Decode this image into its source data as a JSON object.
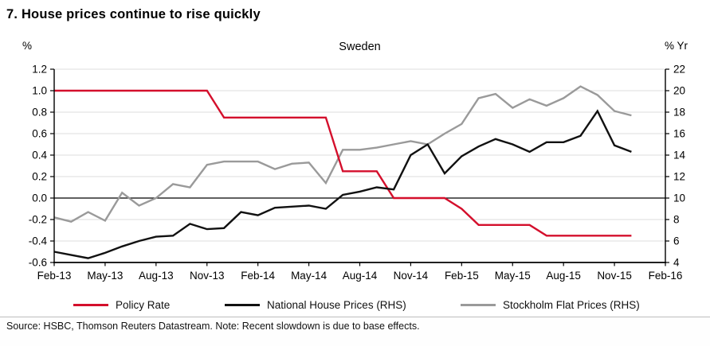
{
  "chart_data": {
    "type": "line",
    "title": "7. House prices continue to rise quickly",
    "region_label": "Sweden",
    "grid": true,
    "legend_position": "bottom",
    "left_axis": {
      "unit_label": "%",
      "min": -0.6,
      "max": 1.2,
      "tick_labels": [
        "1.2",
        "1.0",
        "0.8",
        "0.6",
        "0.4",
        "0.2",
        "0.0",
        "-0.2",
        "-0.4",
        "-0.6"
      ]
    },
    "right_axis": {
      "unit_label": "% Yr",
      "min": 4,
      "max": 22,
      "tick_labels": [
        "22",
        "20",
        "18",
        "16",
        "14",
        "12",
        "10",
        "8",
        "6",
        "4"
      ]
    },
    "x": {
      "span_months": 36,
      "tick_labels": [
        "Feb-13",
        "May-13",
        "Aug-13",
        "Nov-13",
        "Feb-14",
        "May-14",
        "Aug-14",
        "Nov-14",
        "Feb-15",
        "May-15",
        "Aug-15",
        "Nov-15",
        "Feb-16"
      ],
      "months": [
        "Feb-13",
        "Mar-13",
        "Apr-13",
        "May-13",
        "Jun-13",
        "Jul-13",
        "Aug-13",
        "Sep-13",
        "Oct-13",
        "Nov-13",
        "Dec-13",
        "Jan-14",
        "Feb-14",
        "Mar-14",
        "Apr-14",
        "May-14",
        "Jun-14",
        "Jul-14",
        "Aug-14",
        "Sep-14",
        "Oct-14",
        "Nov-14",
        "Dec-14",
        "Jan-15",
        "Feb-15",
        "Mar-15",
        "Apr-15",
        "May-15",
        "Jun-15",
        "Jul-15",
        "Aug-15",
        "Sep-15",
        "Oct-15",
        "Nov-15",
        "Dec-15"
      ]
    },
    "series": [
      {
        "name": "Policy Rate",
        "axis": "left",
        "color": "#d40f2c",
        "values": [
          1.0,
          1.0,
          1.0,
          1.0,
          1.0,
          1.0,
          1.0,
          1.0,
          1.0,
          1.0,
          0.75,
          0.75,
          0.75,
          0.75,
          0.75,
          0.75,
          0.75,
          0.25,
          0.25,
          0.25,
          0.0,
          0.0,
          0.0,
          0.0,
          -0.1,
          -0.25,
          -0.25,
          -0.25,
          -0.25,
          -0.35,
          -0.35,
          -0.35,
          -0.35,
          -0.35,
          -0.35
        ]
      },
      {
        "name": "National House Prices (RHS)",
        "axis": "right",
        "color": "#111111",
        "values": [
          5.0,
          4.7,
          4.4,
          4.9,
          5.5,
          6.0,
          6.4,
          6.5,
          7.6,
          7.1,
          7.2,
          8.7,
          8.4,
          9.1,
          9.2,
          9.3,
          9.0,
          10.3,
          10.6,
          11.0,
          10.8,
          14.0,
          15.0,
          12.3,
          13.9,
          14.8,
          15.5,
          15.0,
          14.3,
          15.2,
          15.2,
          15.8,
          18.1,
          14.9,
          14.3
        ]
      },
      {
        "name": "Stockholm Flat Prices (RHS)",
        "axis": "right",
        "color": "#9a9a9a",
        "values": [
          8.2,
          7.8,
          8.7,
          7.9,
          10.5,
          9.3,
          10.0,
          11.3,
          11.0,
          13.1,
          13.4,
          13.4,
          13.4,
          12.7,
          13.2,
          13.3,
          11.4,
          14.5,
          14.5,
          14.7,
          15.0,
          15.3,
          15.0,
          16.0,
          16.9,
          19.3,
          19.7,
          18.4,
          19.2,
          18.6,
          19.3,
          20.4,
          19.6,
          18.1,
          17.7
        ]
      }
    ],
    "colors": {
      "gridline": "#dcdcdc",
      "axis": "#000000",
      "zero_line": "#000000"
    }
  },
  "footer": {
    "source_note": "Source: HSBC, Thomson Reuters Datastream. Note: Recent slowdown is due to base effects."
  }
}
